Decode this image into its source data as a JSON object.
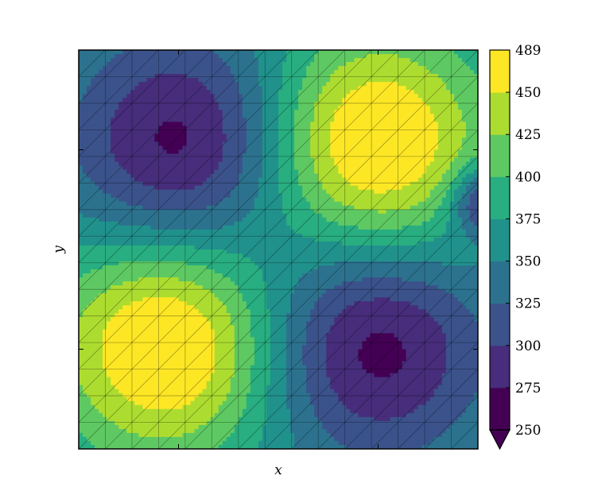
{
  "chart_data": {
    "type": "heatmap",
    "subtype": "filled-contour (tricontourf) over triangular mesh",
    "title": "",
    "xlabel": "x",
    "ylabel": "y",
    "xticks_labeled": false,
    "yticks_labeled": false,
    "grid": false,
    "colormap": "viridis",
    "colorbar": {
      "levels": [
        250,
        275,
        300,
        325,
        350,
        375,
        400,
        425,
        450,
        489
      ],
      "tick_labels": [
        "250",
        "275",
        "300",
        "325",
        "350",
        "375",
        "400",
        "425",
        "450",
        "489"
      ],
      "extend": "min",
      "colors": [
        "#440154",
        "#472d7b",
        "#3b528b",
        "#2c728e",
        "#21918c",
        "#28ae80",
        "#5ec962",
        "#addc30",
        "#fde725"
      ],
      "under_color": "#440154"
    },
    "features": [
      {
        "kind": "minimum",
        "x": 0.26,
        "y": 0.76,
        "value": 262
      },
      {
        "kind": "maximum",
        "x": 0.74,
        "y": 0.76,
        "value": 489
      },
      {
        "kind": "maximum",
        "x": 0.22,
        "y": 0.26,
        "value": 489
      },
      {
        "kind": "minimum",
        "x": 0.74,
        "y": 0.26,
        "value": 262
      },
      {
        "kind": "minimum",
        "x": 1.02,
        "y": 0.62,
        "value": 262
      }
    ],
    "background_value": 362
  }
}
